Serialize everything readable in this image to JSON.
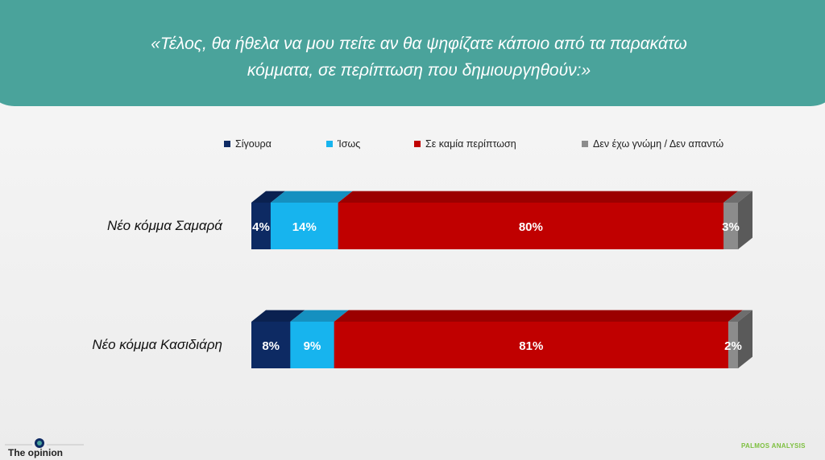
{
  "header": {
    "question": "«Τέλος, θα ήθελα να μου πείτε αν θα ψηφίζατε κάποιο από τα παρακάτω κόμματα, σε περίπτωση που δημιουργηθούν:»"
  },
  "colors": {
    "header_bg": "#4aa39b",
    "series": [
      "#0d2a63",
      "#17b4ee",
      "#c00000",
      "#8c8c8c"
    ],
    "series_top": [
      "#0a2150",
      "#1590c0",
      "#9b0000",
      "#6e6e6e"
    ],
    "side": "#5a5a5a"
  },
  "chart_data": {
    "type": "bar",
    "orientation": "horizontal",
    "stacked": true,
    "categories": [
      "Νέο κόμμα Σαμαρά",
      "Νέο κόμμα Κασιδιάρη"
    ],
    "series": [
      {
        "name": "Σίγουρα",
        "values": [
          4,
          8
        ]
      },
      {
        "name": "Ίσως",
        "values": [
          14,
          9
        ]
      },
      {
        "name": "Σε καμία περίπτωση",
        "values": [
          80,
          81
        ]
      },
      {
        "name": "Δεν έχω γνώμη / Δεν απαντώ",
        "values": [
          3,
          2
        ]
      }
    ],
    "value_suffix": "%",
    "legend_position": "top"
  },
  "footer": {
    "logo_text": "The opinion",
    "brand": "PALMOS ANALYSIS"
  }
}
